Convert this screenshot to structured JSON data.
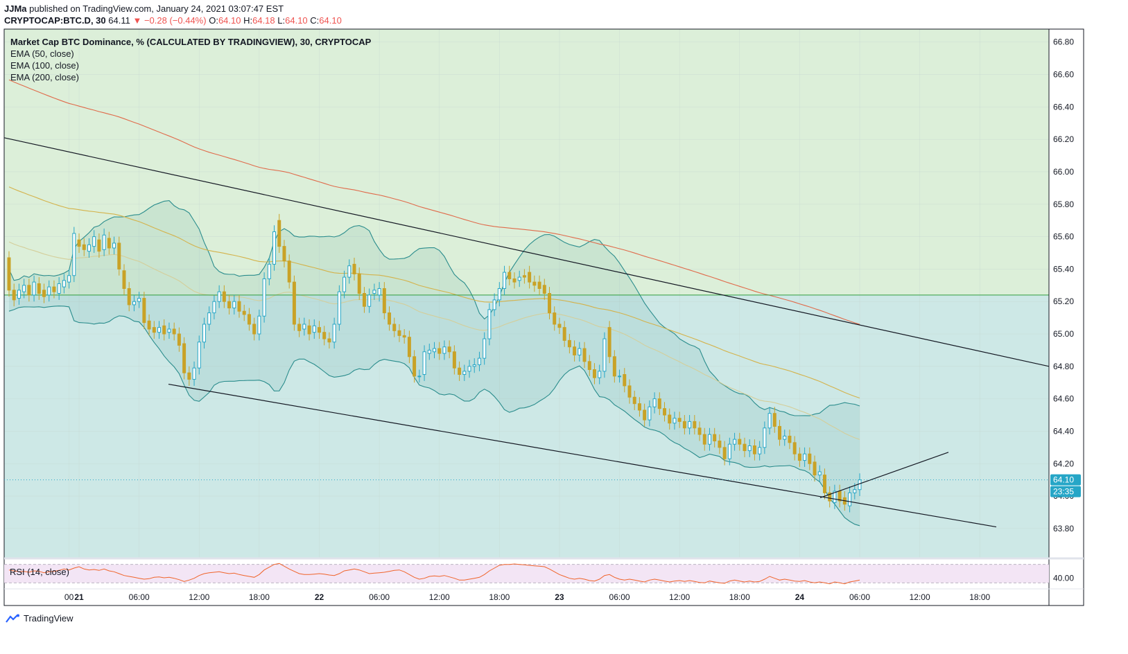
{
  "header": {
    "author": "JJMa",
    "published": "published on TradingView.com, January 24, 2021 03:07:47 EST",
    "symbol": "CRYPTOCAP:BTC.D, 30",
    "last": "64.11",
    "change": "▼ −0.28 (−0.44%)",
    "o_label": "O:",
    "o": "64.10",
    "h_label": "H:",
    "h": "64.18",
    "l_label": "L:",
    "l": "64.10",
    "c_label": "C:",
    "c": "64.10"
  },
  "legend": {
    "title": "Market Cap BTC Dominance, % (CALCULATED BY TRADINGVIEW), 30, CRYPTOCAP",
    "ema1": "EMA (50, close)",
    "ema2": "EMA (100, close)",
    "ema3": "EMA (200, close)"
  },
  "rsi": {
    "label": "RSI (14, close)",
    "tick": "40.00"
  },
  "footer": {
    "brand": "TradingView"
  },
  "colors": {
    "bull": "#26a6c7",
    "bear": "#c9a227",
    "ema50": "#d4ce9a",
    "ema100": "#d4b24a",
    "ema200": "#e06a4a",
    "bollinger": "#2a8c8c",
    "zone_upper": "#dcefd9",
    "zone_lower": "#cde8e6",
    "rsi_line": "#f0642a"
  },
  "price_label": {
    "value": "64.10",
    "countdown": "23:35"
  },
  "chart_data": {
    "type": "candlestick",
    "ylim": [
      63.62,
      66.88
    ],
    "yticks": [
      "66.80",
      "66.60",
      "66.40",
      "66.20",
      "66.00",
      "65.80",
      "65.60",
      "65.40",
      "65.20",
      "65.00",
      "64.80",
      "64.60",
      "64.40",
      "64.20",
      "64.00",
      "63.80"
    ],
    "xticks": [
      "00",
      "21",
      "06:00",
      "12:00",
      "18:00",
      "22",
      "06:00",
      "12:00",
      "18:00",
      "23",
      "06:00",
      "12:00",
      "18:00",
      "24",
      "06:00",
      "12:00",
      "18:00"
    ],
    "horizontal_level": 65.24,
    "candles": [
      [
        65.47,
        65.27
      ],
      [
        65.27,
        65.21
      ],
      [
        65.22,
        65.27
      ],
      [
        65.26,
        65.3
      ],
      [
        65.3,
        65.24
      ],
      [
        65.24,
        65.32
      ],
      [
        65.31,
        65.25
      ],
      [
        65.27,
        65.23
      ],
      [
        65.24,
        65.29
      ],
      [
        65.29,
        65.26
      ],
      [
        65.25,
        65.31
      ],
      [
        65.29,
        65.33
      ],
      [
        65.32,
        65.36
      ],
      [
        65.36,
        65.62
      ],
      [
        65.58,
        65.54
      ],
      [
        65.55,
        65.52
      ],
      [
        65.51,
        65.55
      ],
      [
        65.54,
        65.6
      ],
      [
        65.58,
        65.51
      ],
      [
        65.52,
        65.61
      ],
      [
        65.59,
        65.53
      ],
      [
        65.53,
        65.56
      ],
      [
        65.56,
        65.4
      ],
      [
        65.39,
        65.28
      ],
      [
        65.28,
        65.18
      ],
      [
        65.18,
        65.2
      ],
      [
        65.2,
        65.22
      ],
      [
        65.22,
        65.07
      ],
      [
        65.08,
        65.03
      ],
      [
        65.04,
        65.01
      ],
      [
        65.01,
        65.04
      ],
      [
        65.05,
        65.0
      ],
      [
        65.01,
        65.03
      ],
      [
        65.03,
        65.0
      ],
      [
        65.0,
        64.93
      ],
      [
        64.94,
        64.76
      ],
      [
        64.76,
        64.72
      ],
      [
        64.72,
        64.79
      ],
      [
        64.79,
        64.95
      ],
      [
        64.95,
        65.06
      ],
      [
        65.06,
        65.13
      ],
      [
        65.13,
        65.2
      ],
      [
        65.2,
        65.26
      ],
      [
        65.26,
        65.2
      ],
      [
        65.2,
        65.16
      ],
      [
        65.16,
        65.2
      ],
      [
        65.2,
        65.14
      ],
      [
        65.14,
        65.12
      ],
      [
        65.12,
        65.06
      ],
      [
        65.06,
        65.0
      ],
      [
        65.0,
        65.11
      ],
      [
        65.11,
        65.34
      ],
      [
        65.34,
        65.43
      ],
      [
        65.43,
        65.63
      ],
      [
        65.7,
        65.54
      ],
      [
        65.54,
        65.45
      ],
      [
        65.45,
        65.32
      ],
      [
        65.32,
        65.06
      ],
      [
        65.06,
        65.02
      ],
      [
        65.03,
        65.06
      ],
      [
        65.05,
        65.0
      ],
      [
        65.01,
        65.05
      ],
      [
        65.04,
        65.01
      ],
      [
        65.01,
        64.97
      ],
      [
        64.97,
        64.95
      ],
      [
        64.95,
        65.06
      ],
      [
        65.06,
        65.26
      ],
      [
        65.26,
        65.35
      ],
      [
        65.35,
        65.42
      ],
      [
        65.43,
        65.37
      ],
      [
        65.37,
        65.25
      ],
      [
        65.25,
        65.17
      ],
      [
        65.17,
        65.24
      ],
      [
        65.25,
        65.27
      ],
      [
        65.24,
        65.28
      ],
      [
        65.28,
        65.13
      ],
      [
        65.13,
        65.06
      ],
      [
        65.06,
        65.02
      ],
      [
        65.02,
        64.99
      ],
      [
        64.99,
        64.98
      ],
      [
        64.98,
        64.86
      ],
      [
        64.86,
        64.74
      ],
      [
        64.74,
        64.74
      ],
      [
        64.75,
        64.89
      ],
      [
        64.88,
        64.9
      ],
      [
        64.89,
        64.91
      ],
      [
        64.91,
        64.88
      ],
      [
        64.88,
        64.92
      ],
      [
        64.92,
        64.89
      ],
      [
        64.89,
        64.79
      ],
      [
        64.79,
        64.75
      ],
      [
        64.75,
        64.77
      ],
      [
        64.77,
        64.8
      ],
      [
        64.8,
        64.81
      ],
      [
        64.81,
        64.85
      ],
      [
        64.85,
        64.97
      ],
      [
        64.97,
        65.15
      ],
      [
        65.15,
        65.21
      ],
      [
        65.21,
        65.28
      ],
      [
        65.28,
        65.38
      ],
      [
        65.38,
        65.34
      ],
      [
        65.34,
        65.32
      ],
      [
        65.33,
        65.35
      ],
      [
        65.36,
        65.35
      ],
      [
        65.38,
        65.32
      ],
      [
        65.32,
        65.3
      ],
      [
        65.32,
        65.28
      ],
      [
        65.3,
        65.25
      ],
      [
        65.25,
        65.13
      ],
      [
        65.13,
        65.06
      ],
      [
        65.06,
        65.04
      ],
      [
        65.04,
        64.96
      ],
      [
        64.96,
        64.92
      ],
      [
        64.92,
        64.87
      ],
      [
        64.87,
        64.91
      ],
      [
        64.91,
        64.83
      ],
      [
        64.83,
        64.78
      ],
      [
        64.78,
        64.73
      ],
      [
        64.73,
        64.77
      ],
      [
        64.77,
        64.97
      ],
      [
        65.04,
        64.86
      ],
      [
        64.86,
        64.74
      ],
      [
        64.74,
        64.74
      ],
      [
        64.75,
        64.68
      ],
      [
        64.68,
        64.61
      ],
      [
        64.61,
        64.57
      ],
      [
        64.57,
        64.53
      ],
      [
        64.53,
        64.47
      ],
      [
        64.47,
        64.55
      ],
      [
        64.55,
        64.6
      ],
      [
        64.6,
        64.54
      ],
      [
        64.54,
        64.5
      ],
      [
        64.5,
        64.45
      ],
      [
        64.45,
        64.48
      ],
      [
        64.48,
        64.46
      ],
      [
        64.46,
        64.42
      ],
      [
        64.42,
        64.46
      ],
      [
        64.46,
        64.42
      ],
      [
        64.42,
        64.38
      ],
      [
        64.38,
        64.32
      ],
      [
        64.32,
        64.38
      ],
      [
        64.38,
        64.34
      ],
      [
        64.34,
        64.3
      ],
      [
        64.3,
        64.23
      ],
      [
        64.23,
        64.32
      ],
      [
        64.32,
        64.35
      ],
      [
        64.35,
        64.32
      ],
      [
        64.32,
        64.28
      ],
      [
        64.28,
        64.31
      ],
      [
        64.31,
        64.26
      ],
      [
        64.26,
        64.3
      ],
      [
        64.3,
        64.42
      ],
      [
        64.42,
        64.51
      ],
      [
        64.51,
        64.43
      ],
      [
        64.43,
        64.35
      ],
      [
        64.35,
        64.37
      ],
      [
        64.37,
        64.33
      ],
      [
        64.33,
        64.26
      ],
      [
        64.26,
        64.22
      ],
      [
        64.22,
        64.26
      ],
      [
        64.26,
        64.2
      ],
      [
        64.21,
        64.13
      ],
      [
        64.13,
        64.15
      ],
      [
        64.13,
        64.02
      ],
      [
        64.02,
        63.97
      ],
      [
        63.96,
        64.03
      ],
      [
        64.03,
        63.97
      ],
      [
        63.99,
        63.95
      ],
      [
        63.94,
        64.02
      ],
      [
        64.02,
        64.04
      ],
      [
        64.04,
        64.1
      ]
    ],
    "rsi_values": [
      58,
      56,
      54,
      55,
      53,
      56,
      55,
      52,
      54,
      55,
      57,
      60,
      58,
      62,
      65,
      60,
      58,
      59,
      57,
      60,
      56,
      54,
      50,
      46,
      44,
      42,
      40,
      38,
      39,
      42,
      43,
      41,
      42,
      40,
      37,
      33,
      36,
      40,
      46,
      50,
      52,
      53,
      54,
      52,
      50,
      51,
      48,
      46,
      44,
      42,
      48,
      58,
      64,
      70,
      72,
      66,
      60,
      55,
      50,
      48,
      48,
      49,
      50,
      49,
      47,
      46,
      50,
      56,
      58,
      60,
      58,
      54,
      50,
      51,
      52,
      53,
      55,
      57,
      58,
      54,
      48,
      42,
      38,
      40,
      44,
      45,
      44,
      46,
      43,
      40,
      36,
      36,
      38,
      40,
      42,
      48,
      56,
      62,
      68,
      70,
      70,
      71,
      70,
      69,
      68,
      67,
      66,
      65,
      60,
      54,
      48,
      44,
      40,
      38,
      40,
      38,
      35,
      34,
      38,
      46,
      48,
      42,
      38,
      36,
      38,
      36,
      34,
      32,
      36,
      38,
      36,
      34,
      32,
      34,
      35,
      33,
      35,
      33,
      31,
      30,
      34,
      32,
      30,
      29,
      34,
      36,
      34,
      32,
      34,
      32,
      33,
      38,
      44,
      40,
      36,
      38,
      36,
      34,
      33,
      35,
      32,
      30,
      32,
      30,
      28,
      32,
      30,
      28,
      32,
      34,
      36
    ]
  }
}
